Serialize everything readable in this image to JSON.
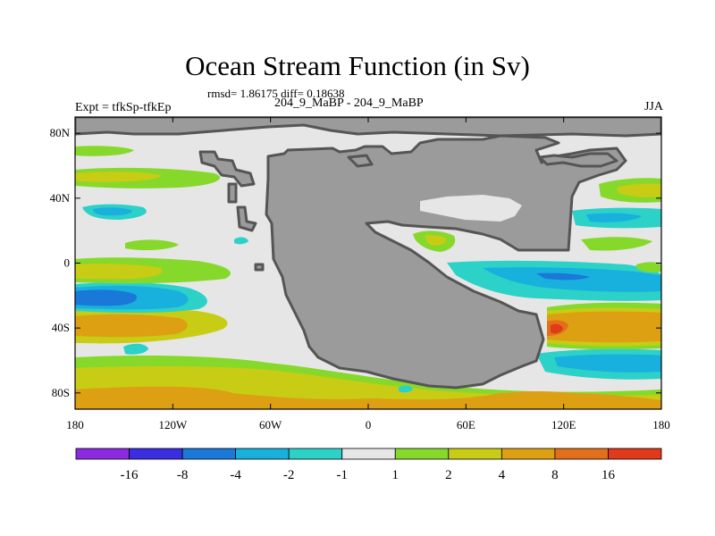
{
  "header": {
    "title": "Ocean Stream Function (in Sv)",
    "stats": "rmsd= 1.86175 diff= 0.18638",
    "left_label": "Expt = tfkSp-tfkEp",
    "center_label": "204_9_MaBP - 204_9_MaBP",
    "right_label": "JJA"
  },
  "axes": {
    "y_ticks": [
      {
        "value": 80,
        "label": "80N"
      },
      {
        "value": 40,
        "label": "40N"
      },
      {
        "value": 0,
        "label": "0"
      },
      {
        "value": -40,
        "label": "40S"
      },
      {
        "value": -80,
        "label": "80S"
      }
    ],
    "x_ticks": [
      {
        "value": -180,
        "label": "180"
      },
      {
        "value": -120,
        "label": "120W"
      },
      {
        "value": -60,
        "label": "60W"
      },
      {
        "value": 0,
        "label": "0"
      },
      {
        "value": 60,
        "label": "60E"
      },
      {
        "value": 120,
        "label": "120E"
      },
      {
        "value": 180,
        "label": "180"
      }
    ],
    "lon_range": [
      -180,
      180
    ],
    "lat_range": [
      -90,
      90
    ]
  },
  "colors": {
    "land": "#9b9b9b",
    "coast": "#555555",
    "near_zero": "#e6e6e6",
    "bin_1_2": "#86d92a",
    "bin_2_4": "#c8cc15",
    "bin_4_8": "#dca012",
    "bin_8_16": "#e2701a",
    "bin_gt16": "#e03a1a",
    "bin_m1_m2": "#2cd1c8",
    "bin_m2_m4": "#18b0dc",
    "bin_m4_m8": "#1a78d8"
  },
  "colorbar": {
    "colors": [
      "#8a2be2",
      "#3a2ee0",
      "#1a78d8",
      "#18b0dc",
      "#2cd1c8",
      "#e6e6e6",
      "#86d92a",
      "#c8cc15",
      "#dca012",
      "#e2701a",
      "#e03a1a"
    ],
    "labels": [
      "-16",
      "-8",
      "-4",
      "-2",
      "-1",
      "1",
      "2",
      "4",
      "8",
      "16"
    ]
  }
}
